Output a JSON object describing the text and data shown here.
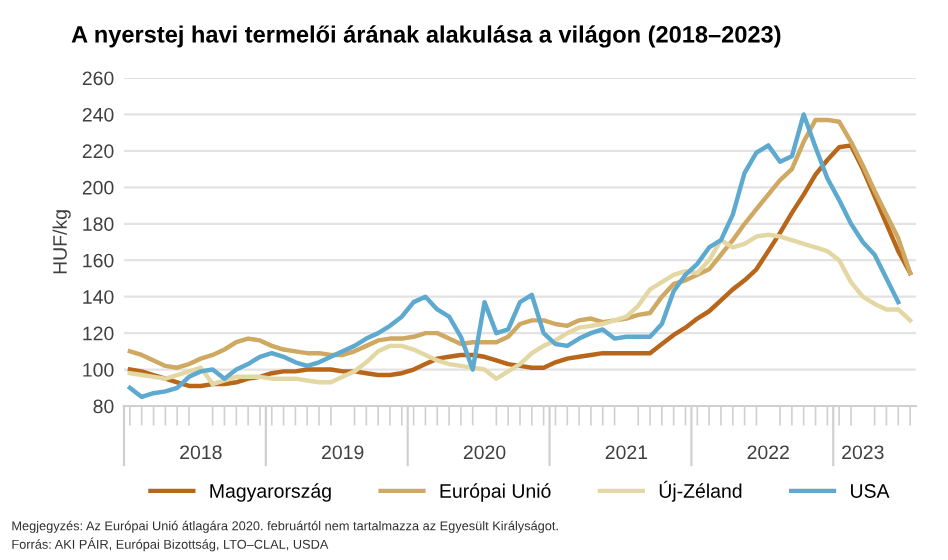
{
  "chart_data": {
    "type": "line",
    "title": "A nyerstej havi termelői árának alakulása a világon (2018–2023)",
    "ylabel": "HUF/kg",
    "categories": [
      null,
      null,
      null,
      null,
      null,
      null,
      "2018",
      null,
      null,
      null,
      null,
      null,
      null,
      null,
      null,
      null,
      null,
      null,
      "2019",
      null,
      null,
      null,
      null,
      null,
      null,
      null,
      null,
      null,
      null,
      null,
      "2020",
      null,
      null,
      null,
      null,
      null,
      null,
      null,
      null,
      null,
      null,
      null,
      "2021",
      null,
      null,
      null,
      null,
      null,
      null,
      null,
      null,
      null,
      null,
      null,
      "2022",
      null,
      null,
      null,
      null,
      null,
      null,
      null,
      "2023",
      null,
      null,
      null,
      null
    ],
    "series": [
      {
        "name": "Magyarország",
        "color": "#b8671a",
        "values": [
          100,
          99,
          97,
          95,
          93,
          91,
          91,
          92,
          92,
          93,
          95,
          96,
          98,
          99,
          99,
          100,
          100,
          100,
          99,
          99,
          98,
          97,
          97,
          98,
          100,
          103,
          106,
          107,
          108,
          108,
          107,
          105,
          103,
          102,
          101,
          101,
          104,
          106,
          107,
          108,
          109,
          109,
          109,
          109,
          109,
          114,
          119,
          123,
          128,
          132,
          138,
          144,
          149,
          155,
          165,
          175,
          186,
          196,
          207,
          215,
          222,
          223,
          210,
          195,
          180,
          165,
          153
        ]
      },
      {
        "name": "Európai Unió",
        "color": "#cfa862",
        "values": [
          110,
          108,
          105,
          102,
          101,
          103,
          106,
          108,
          111,
          115,
          117,
          116,
          113,
          111,
          110,
          109,
          109,
          108,
          108,
          110,
          113,
          116,
          117,
          117,
          118,
          120,
          120,
          117,
          114,
          115,
          115,
          115,
          118,
          125,
          127,
          127,
          125,
          124,
          127,
          128,
          126,
          127,
          128,
          130,
          131,
          140,
          147,
          149,
          152,
          155,
          163,
          171,
          180,
          188,
          196,
          204,
          210,
          225,
          237,
          237,
          236,
          225,
          212,
          198,
          185,
          172,
          153
        ]
      },
      {
        "name": "Új-Zéland",
        "color": "#e3d8a4",
        "values": [
          98,
          97,
          96,
          95,
          97,
          99,
          101,
          92,
          94,
          96,
          96,
          96,
          95,
          95,
          95,
          94,
          93,
          93,
          96,
          99,
          104,
          110,
          113,
          113,
          111,
          108,
          105,
          103,
          102,
          101,
          100,
          95,
          99,
          103,
          109,
          113,
          116,
          120,
          123,
          124,
          125,
          127,
          129,
          135,
          144,
          148,
          152,
          154,
          153,
          160,
          171,
          167,
          169,
          173,
          174,
          173,
          171,
          169,
          167,
          165,
          160,
          148,
          140,
          136,
          133,
          133,
          127
        ]
      },
      {
        "name": "USA",
        "color": "#5ea9d0",
        "values": [
          90,
          85,
          87,
          88,
          90,
          96,
          99,
          100,
          95,
          100,
          103,
          107,
          109,
          107,
          104,
          102,
          104,
          107,
          110,
          113,
          117,
          120,
          124,
          129,
          137,
          140,
          133,
          129,
          118,
          100,
          137,
          120,
          122,
          137,
          141,
          120,
          114,
          113,
          117,
          120,
          122,
          117,
          118,
          118,
          118,
          125,
          143,
          152,
          158,
          167,
          171,
          185,
          208,
          219,
          223,
          214,
          217,
          240,
          222,
          205,
          193,
          180,
          170,
          163,
          150,
          137,
          null
        ]
      }
    ],
    "ylim": [
      80,
      260
    ],
    "yticks": [
      80,
      100,
      120,
      140,
      160,
      180,
      200,
      220,
      240,
      260
    ],
    "grid": "y",
    "legend": "bottom",
    "marker": "none",
    "line_style": "solid",
    "annotations": [
      "Megjegyzés: Az Európai Unió átlagára 2020. februártól nem tartalmazza az Egyesült Királyságot.",
      "Forrás: AKI PÁIR, Európai Bizottság, LTO–CLAL, USDA"
    ]
  }
}
